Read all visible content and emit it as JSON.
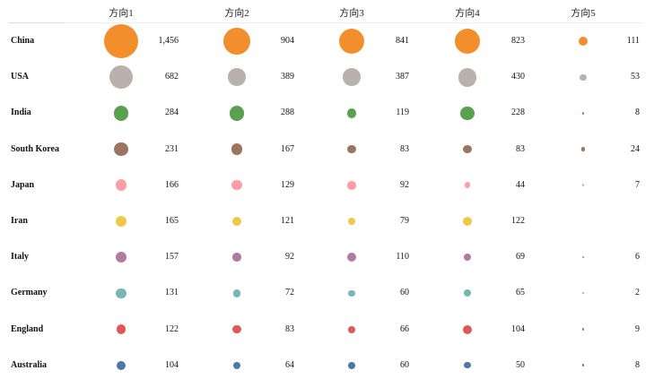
{
  "chart_data": {
    "type": "table",
    "columns": [
      "方向1",
      "方向2",
      "方向3",
      "方向4",
      "方向5"
    ],
    "rows": [
      {
        "label": "China",
        "color": "#F28E2B",
        "values": [
          1456,
          904,
          841,
          823,
          111
        ]
      },
      {
        "label": "USA",
        "color": "#BAB0AC",
        "values": [
          682,
          389,
          387,
          430,
          53
        ]
      },
      {
        "label": "India",
        "color": "#59A14F",
        "values": [
          284,
          288,
          119,
          228,
          8
        ]
      },
      {
        "label": "South Korea",
        "color": "#9C755F",
        "values": [
          231,
          167,
          83,
          83,
          24
        ]
      },
      {
        "label": "Japan",
        "color": "#FF9DA7",
        "values": [
          166,
          129,
          92,
          44,
          7
        ]
      },
      {
        "label": "Iran",
        "color": "#EDC948",
        "values": [
          165,
          121,
          79,
          122,
          null
        ]
      },
      {
        "label": "Italy",
        "color": "#B07AA1",
        "values": [
          157,
          92,
          110,
          69,
          6
        ]
      },
      {
        "label": "Germany",
        "color": "#76B7B2",
        "values": [
          131,
          72,
          60,
          65,
          2
        ]
      },
      {
        "label": "England",
        "color": "#E15759",
        "values": [
          122,
          83,
          66,
          104,
          9
        ]
      },
      {
        "label": "Australia",
        "color": "#4E79A7",
        "values": [
          104,
          64,
          60,
          50,
          8
        ]
      }
    ],
    "value_labels": [
      [
        "1,456",
        "904",
        "841",
        "823",
        "111"
      ],
      [
        "682",
        "389",
        "387",
        "430",
        "53"
      ],
      [
        "284",
        "288",
        "119",
        "228",
        "8"
      ],
      [
        "231",
        "167",
        "83",
        "83",
        "24"
      ],
      [
        "166",
        "129",
        "92",
        "44",
        "7"
      ],
      [
        "165",
        "121",
        "79",
        "122",
        ""
      ],
      [
        "157",
        "92",
        "110",
        "69",
        "6"
      ],
      [
        "131",
        "72",
        "60",
        "65",
        "2"
      ],
      [
        "122",
        "83",
        "66",
        "104",
        "9"
      ],
      [
        "104",
        "64",
        "60",
        "50",
        "8"
      ]
    ],
    "size_encoding": "area",
    "grid": false,
    "legend": "none"
  }
}
